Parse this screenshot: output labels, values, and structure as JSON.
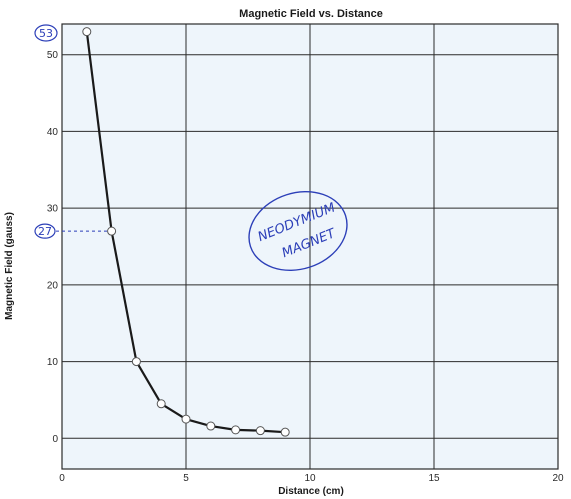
{
  "chart_data": {
    "type": "line",
    "title": "Magnetic Field vs. Distance",
    "xlabel": "Distance (cm)",
    "ylabel": "Magnetic Field (gauss)",
    "xlim": [
      0,
      20
    ],
    "ylim": [
      -4,
      54
    ],
    "xticks": [
      0,
      5,
      10,
      15,
      20
    ],
    "yticks": [
      0,
      10,
      20,
      30,
      40,
      50
    ],
    "grid": true,
    "series": [
      {
        "x": [
          1,
          2,
          3,
          4,
          5,
          6,
          7,
          8,
          9
        ],
        "y": [
          53,
          27,
          10,
          4.5,
          2.5,
          1.6,
          1.1,
          1.0,
          0.8
        ]
      }
    ],
    "annotations": {
      "circled_top_value": "53",
      "circled_side_value": "27",
      "handwritten_note": [
        "NEODYMIUM",
        "MAGNET"
      ]
    }
  },
  "colors": {
    "background": "#eef5fb",
    "grid": "#2b2b2b",
    "line": "#1a1a1a",
    "marker_fill": "#ffffff",
    "ink": "#2c3fb8"
  }
}
